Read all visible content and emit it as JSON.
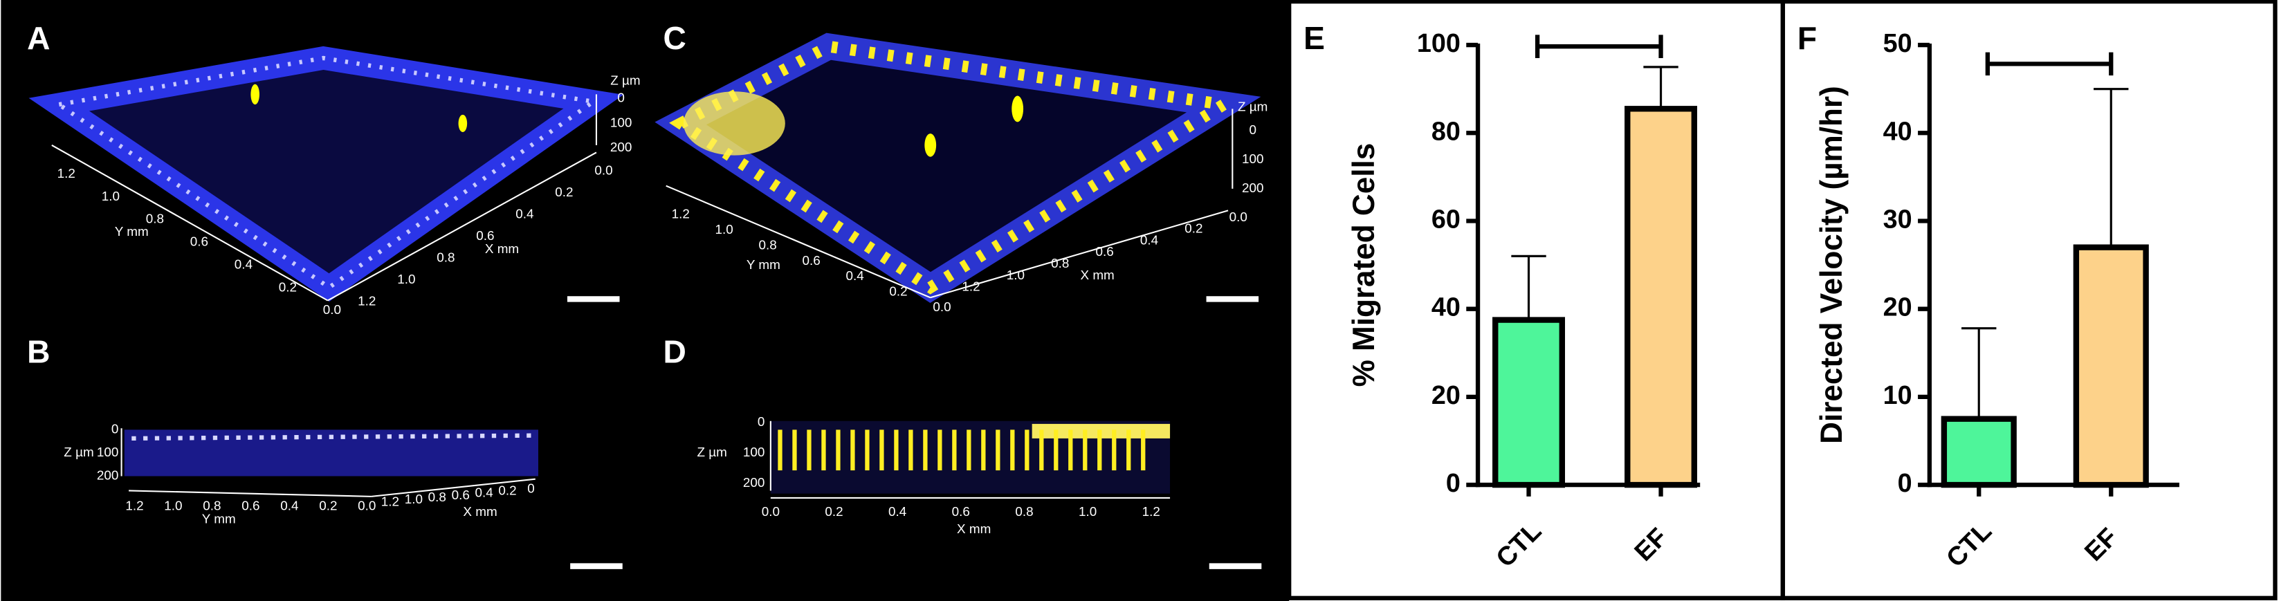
{
  "panels": [
    {
      "label": "A",
      "axes": [
        {
          "title": "Y mm",
          "ticks": [
            "1.2",
            "1.0",
            "0.8",
            "0.6",
            "0.4",
            "0.2",
            "0.0"
          ]
        },
        {
          "title": "X mm",
          "ticks": [
            "1.2",
            "1.0",
            "0.8",
            "0.6",
            "0.4",
            "0.2",
            "0.0"
          ]
        },
        {
          "title": "Z µm",
          "ticks": [
            "0",
            "100",
            "200"
          ]
        }
      ]
    },
    {
      "label": "B",
      "axes": [
        {
          "title": "Y mm",
          "ticks": [
            "1.2",
            "1.0",
            "0.8",
            "0.6",
            "0.4",
            "0.2",
            "0.0"
          ]
        },
        {
          "title": "X mm",
          "ticks": [
            "1.2",
            "1.0",
            "0.8",
            "0.6",
            "0.4",
            "0.2",
            "0"
          ]
        },
        {
          "title": "Z µm",
          "ticks": [
            "0",
            "100",
            "200"
          ]
        }
      ]
    },
    {
      "label": "C",
      "axes": [
        {
          "title": "Y mm",
          "ticks": [
            "1.2",
            "1.0",
            "0.8",
            "0.6",
            "0.4",
            "0.2",
            "0.0"
          ]
        },
        {
          "title": "X mm",
          "ticks": [
            "1.2",
            "1.0",
            "0.8",
            "0.6",
            "0.4",
            "0.2",
            "0.0"
          ]
        },
        {
          "title": "Z µm",
          "ticks": [
            "0",
            "100",
            "200"
          ]
        }
      ]
    },
    {
      "label": "D",
      "axes": [
        {
          "title": "X mm",
          "ticks": [
            "0.0",
            "0.2",
            "0.4",
            "0.6",
            "0.8",
            "1.0",
            "1.2"
          ]
        },
        {
          "title": "Z µm",
          "ticks": [
            "0",
            "100",
            "200"
          ]
        }
      ]
    }
  ],
  "chart_data": [
    {
      "type": "bar",
      "panel_label": "E",
      "ylabel": "% Migrated Cells",
      "categories": [
        "CTL",
        "EF"
      ],
      "values": [
        37.5,
        85.5
      ],
      "errors": [
        14.5,
        9.5
      ],
      "error_direction": "both",
      "colors": [
        "#4ef59a",
        "#fdd28a"
      ],
      "ylim": [
        0,
        100
      ],
      "yticks": [
        0,
        20,
        40,
        60,
        80,
        100
      ]
    },
    {
      "type": "bar",
      "panel_label": "F",
      "ylabel": "Directed Velocity (µm/hr)",
      "categories": [
        "CTL",
        "EF"
      ],
      "values": [
        7.5,
        27
      ],
      "errors": [
        10.3,
        18
      ],
      "error_direction": "up",
      "colors": [
        "#4ef59a",
        "#fdd28a"
      ],
      "ylim": [
        0,
        50
      ],
      "yticks": [
        0,
        10,
        20,
        30,
        40,
        50
      ]
    }
  ]
}
